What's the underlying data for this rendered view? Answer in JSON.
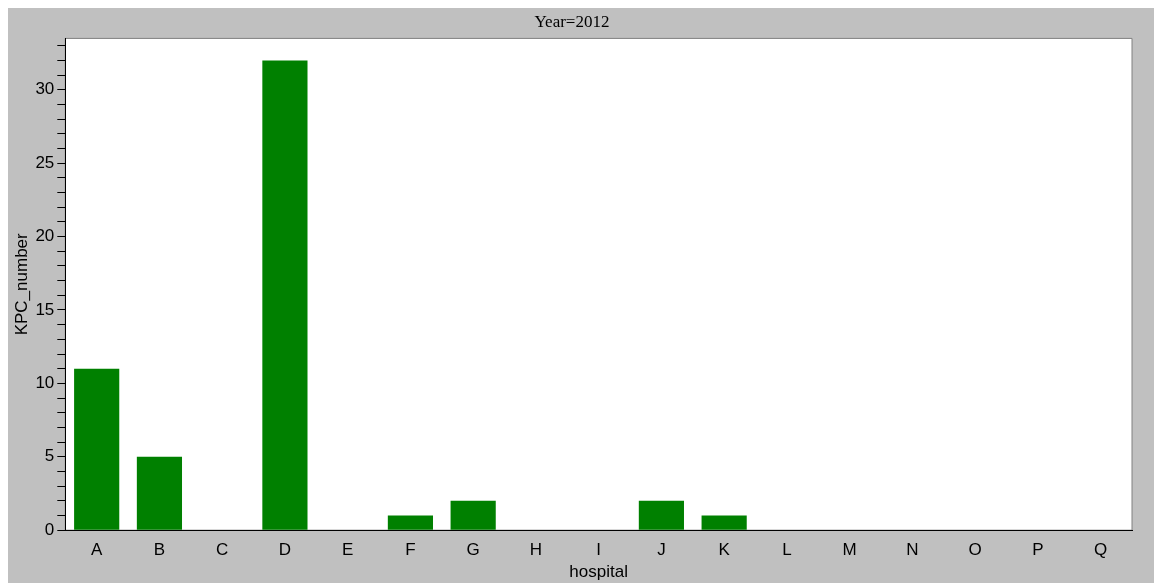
{
  "chart_data": {
    "type": "bar",
    "title": "Year=2012",
    "xlabel": "hospital",
    "ylabel": "KPC_number",
    "categories": [
      "A",
      "B",
      "C",
      "D",
      "E",
      "F",
      "G",
      "H",
      "I",
      "J",
      "K",
      "L",
      "M",
      "N",
      "O",
      "P",
      "Q"
    ],
    "values": [
      11,
      5,
      0,
      32,
      0,
      1,
      2,
      0,
      0,
      2,
      1,
      0,
      0,
      0,
      0,
      0,
      0
    ],
    "color": "#008000",
    "ylim": [
      0,
      33.5
    ],
    "yticks": [
      0,
      {
        "value": 1,
        "label": null
      },
      {
        "value": 2,
        "label": null
      },
      {
        "value": 3,
        "label": null
      },
      {
        "value": 4,
        "label": null
      },
      5,
      {
        "value": 6,
        "label": null
      },
      {
        "value": 7,
        "label": null
      },
      {
        "value": 8,
        "label": null
      },
      {
        "value": 9,
        "label": null
      },
      10,
      {
        "value": 11,
        "label": null
      },
      {
        "value": 12,
        "label": null
      },
      {
        "value": 13,
        "label": null
      },
      {
        "value": 14,
        "label": null
      },
      15,
      {
        "value": 16,
        "label": null
      },
      {
        "value": 17,
        "label": null
      },
      {
        "value": 18,
        "label": null
      },
      {
        "value": 19,
        "label": null
      },
      20,
      {
        "value": 21,
        "label": null
      },
      {
        "value": 22,
        "label": null
      },
      {
        "value": 23,
        "label": null
      },
      {
        "value": 24,
        "label": null
      },
      25,
      {
        "value": 26,
        "label": null
      },
      {
        "value": 27,
        "label": null
      },
      {
        "value": 28,
        "label": null
      },
      {
        "value": 29,
        "label": null
      },
      30,
      {
        "value": 31,
        "label": null
      },
      {
        "value": 32,
        "label": null
      },
      {
        "value": 33,
        "label": null
      }
    ],
    "grid": false,
    "legend": false
  }
}
